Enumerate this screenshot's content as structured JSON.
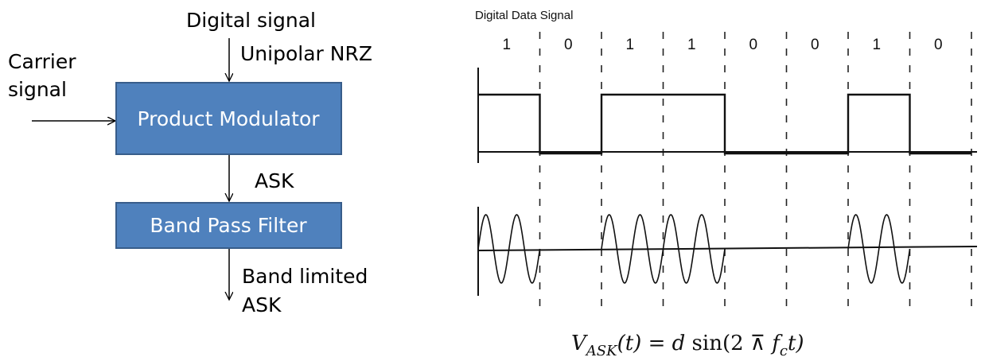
{
  "block_diagram": {
    "input_top": "Digital signal",
    "input_top_sub": "Unipolar NRZ",
    "input_left_line1": "Carrier",
    "input_left_line2": "signal",
    "block1": "Product Modulator",
    "mid_label": "ASK",
    "block2": "Band Pass Filter",
    "output_line1": "Band limited",
    "output_line2": "ASK"
  },
  "waveform": {
    "title": "Digital Data Signal",
    "bits": [
      "1",
      "0",
      "1",
      "1",
      "0",
      "0",
      "1",
      "0"
    ]
  },
  "equation": {
    "lhs_var": "V",
    "lhs_sub": "ASK",
    "lhs_arg": "(t)",
    "eq": " = ",
    "d": "d",
    "sin": " sin(2",
    "pi": " ⊼ ",
    "f": "f",
    "f_sub": "c",
    "t_close": "t)"
  },
  "colors": {
    "block_fill": "#4f81bd",
    "block_stroke": "#385d8a"
  }
}
